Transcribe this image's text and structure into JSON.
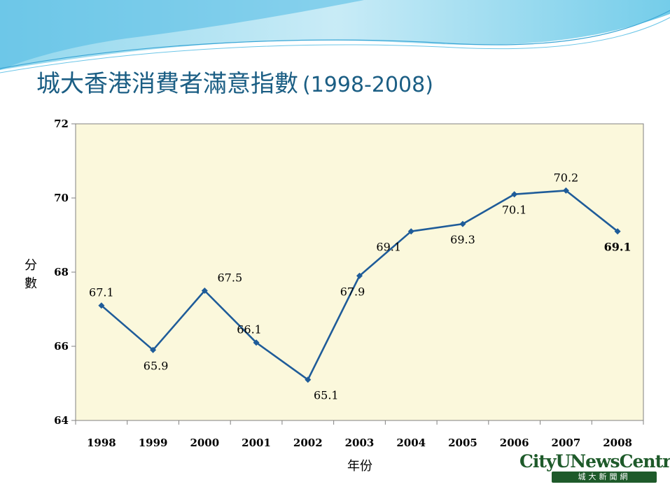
{
  "slide": {
    "title": "城大香港消費者滿意指數",
    "title_years": "(1998-2008)"
  },
  "logo": {
    "name": "CityUNewsCentre",
    "subtitle": "城大新聞網"
  },
  "chart_data": {
    "type": "line",
    "title": "城大香港消費者滿意指數 (1998-2008)",
    "xlabel": "年份",
    "ylabel": "分數",
    "categories": [
      "1998",
      "1999",
      "2000",
      "2001",
      "2002",
      "2003",
      "2004",
      "2005",
      "2006",
      "2007",
      "2008"
    ],
    "series": [
      {
        "values": [
          67.1,
          65.9,
          67.5,
          66.1,
          65.1,
          67.9,
          69.1,
          69.3,
          70.1,
          70.2,
          69.1
        ],
        "color": "#1f5c99",
        "marker": "diamond"
      }
    ],
    "data_labels": [
      "67.1",
      "65.9",
      "67.5",
      "66.1",
      "65.1",
      "67.9",
      "69.1",
      "69.3",
      "70.1",
      "70.2",
      "69.1"
    ],
    "ylim": [
      64,
      72
    ],
    "yticks": [
      "64",
      "66",
      "68",
      "70",
      "72"
    ],
    "grid": false,
    "legend": "none",
    "plot_background": "#fbf8dc"
  }
}
